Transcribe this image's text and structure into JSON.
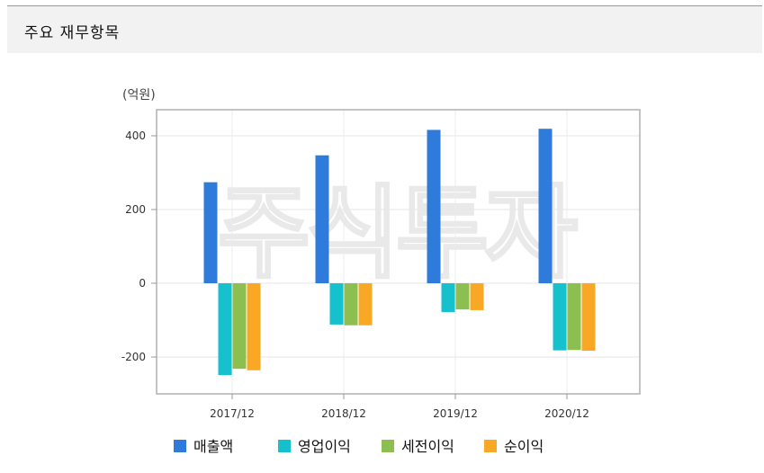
{
  "header": {
    "title": "주요 재무항목"
  },
  "watermark": {
    "text": "주식투자"
  },
  "chart_data": {
    "type": "bar",
    "unit_label": "(억원)",
    "categories": [
      "2017/12",
      "2018/12",
      "2019/12",
      "2020/12"
    ],
    "series": [
      {
        "name": "매출액",
        "color": "#2e7bdb",
        "values": [
          274,
          347,
          416,
          419
        ]
      },
      {
        "name": "영업이익",
        "color": "#15c1cc",
        "values": [
          -249,
          -112,
          -78,
          -182
        ]
      },
      {
        "name": "세전이익",
        "color": "#8cbf4f",
        "values": [
          -232,
          -114,
          -71,
          -181
        ]
      },
      {
        "name": "순이익",
        "color": "#f9a825",
        "values": [
          -236,
          -114,
          -73,
          -183
        ]
      }
    ],
    "yticks": [
      400,
      200,
      0,
      -200
    ],
    "ytick_labels": [
      "400",
      "200",
      "0",
      "-200"
    ],
    "ylim": [
      -300,
      460
    ],
    "grid": true,
    "legend_position": "bottom"
  }
}
